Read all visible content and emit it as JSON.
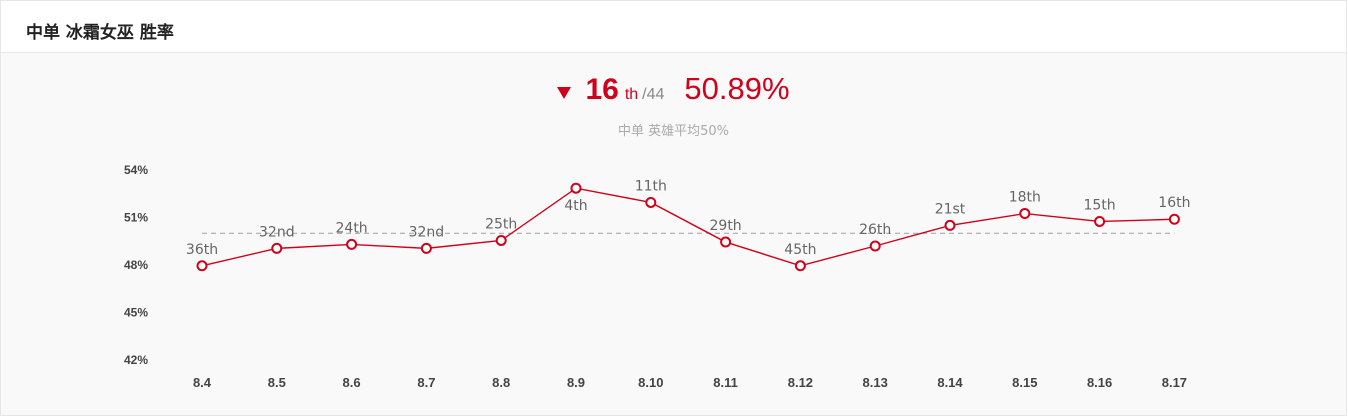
{
  "header": {
    "title": "中单 冰霜女巫 胜率"
  },
  "summary": {
    "trend_icon": "arrow-down-icon",
    "rank": "16",
    "rank_suffix": "th",
    "rank_total": "/44",
    "winrate": "50.89%",
    "avg_note": "中单 英雄平均50%"
  },
  "colors": {
    "accent": "#d0021b",
    "avg_line": "#aaaaaa"
  },
  "chart_data": {
    "type": "line",
    "categories": [
      "8.4",
      "8.5",
      "8.6",
      "8.7",
      "8.8",
      "8.9",
      "8.10",
      "8.11",
      "8.12",
      "8.13",
      "8.14",
      "8.15",
      "8.16",
      "8.17"
    ],
    "values": [
      47.95,
      49.05,
      49.3,
      49.05,
      49.55,
      52.85,
      51.95,
      49.45,
      47.95,
      49.2,
      50.5,
      51.25,
      50.75,
      50.89
    ],
    "point_labels": [
      "36th",
      "32nd",
      "24th",
      "32nd",
      "25th",
      "4th",
      "11th",
      "29th",
      "45th",
      "26th",
      "21st",
      "18th",
      "15th",
      "16th"
    ],
    "label_below": [
      false,
      false,
      false,
      false,
      false,
      true,
      false,
      false,
      false,
      false,
      false,
      false,
      false,
      false
    ],
    "y_ticks": [
      "42%",
      "45%",
      "48%",
      "51%",
      "54%"
    ],
    "y_tick_values": [
      42,
      45,
      48,
      51,
      54
    ],
    "ylim": [
      42,
      54
    ],
    "reference_line": 50,
    "grid": false,
    "legend": "none"
  }
}
